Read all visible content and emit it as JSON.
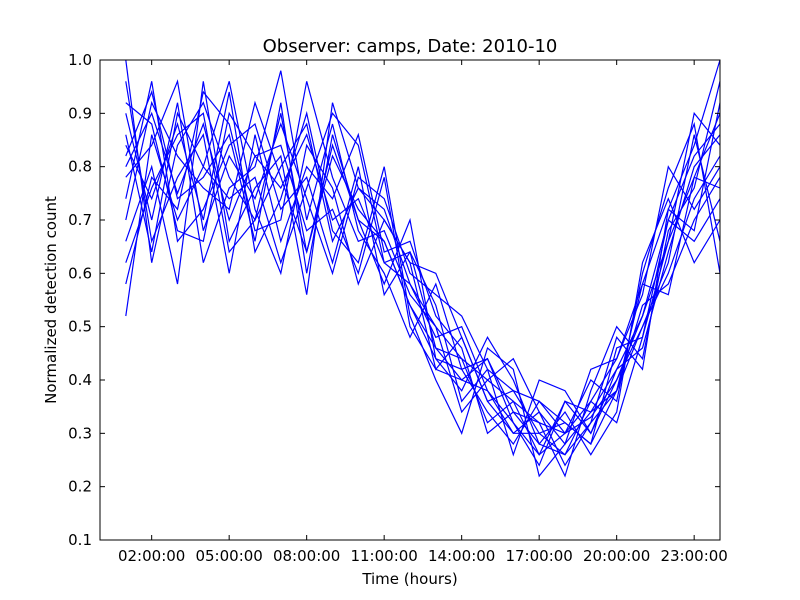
{
  "chart_data": {
    "type": "line",
    "title": "Observer: camps, Date: 2010-10",
    "xlabel": "Time (hours)",
    "ylabel": "Normalized detection count",
    "xlim": [
      0.0,
      24.0
    ],
    "ylim": [
      0.1,
      1.0
    ],
    "x_ticks": [
      {
        "value": 2,
        "label": "02:00:00"
      },
      {
        "value": 5,
        "label": "05:00:00"
      },
      {
        "value": 8,
        "label": "08:00:00"
      },
      {
        "value": 11,
        "label": "11:00:00"
      },
      {
        "value": 14,
        "label": "14:00:00"
      },
      {
        "value": 17,
        "label": "17:00:00"
      },
      {
        "value": 20,
        "label": "20:00:00"
      },
      {
        "value": 23,
        "label": "23:00:00"
      }
    ],
    "y_ticks": [
      {
        "value": 0.1,
        "label": "0.1"
      },
      {
        "value": 0.2,
        "label": "0.2"
      },
      {
        "value": 0.3,
        "label": "0.3"
      },
      {
        "value": 0.4,
        "label": "0.4"
      },
      {
        "value": 0.5,
        "label": "0.5"
      },
      {
        "value": 0.6,
        "label": "0.6"
      },
      {
        "value": 0.7,
        "label": "0.7"
      },
      {
        "value": 0.8,
        "label": "0.8"
      },
      {
        "value": 0.9,
        "label": "0.9"
      },
      {
        "value": 1.0,
        "label": "1.0"
      }
    ],
    "grid": false,
    "legend": "none",
    "line_color": "#0000ff",
    "x": [
      1,
      2,
      3,
      4,
      5,
      6,
      7,
      8,
      9,
      10,
      11,
      12,
      13,
      14,
      15,
      16,
      17,
      18,
      19,
      20,
      21,
      22,
      23,
      24
    ],
    "series": [
      {
        "values": [
          0.8,
          0.9,
          0.75,
          0.88,
          0.7,
          0.82,
          0.76,
          0.86,
          0.7,
          0.74,
          0.62,
          0.58,
          0.5,
          0.44,
          0.4,
          0.36,
          0.32,
          0.3,
          0.33,
          0.4,
          0.52,
          0.66,
          0.78,
          0.9
        ]
      },
      {
        "values": [
          1.0,
          0.62,
          0.84,
          0.92,
          0.78,
          0.7,
          0.9,
          0.64,
          0.82,
          0.72,
          0.66,
          0.54,
          0.46,
          0.4,
          0.44,
          0.34,
          0.28,
          0.26,
          0.36,
          0.44,
          0.58,
          0.72,
          0.84,
          1.0
        ]
      },
      {
        "values": [
          0.52,
          0.86,
          0.7,
          0.8,
          0.96,
          0.72,
          0.6,
          0.84,
          0.76,
          0.58,
          0.7,
          0.62,
          0.42,
          0.48,
          0.36,
          0.3,
          0.34,
          0.24,
          0.32,
          0.38,
          0.5,
          0.6,
          0.74,
          0.82
        ]
      },
      {
        "values": [
          0.74,
          0.96,
          0.66,
          0.72,
          0.84,
          0.88,
          0.72,
          0.78,
          0.62,
          0.8,
          0.56,
          0.64,
          0.54,
          0.36,
          0.42,
          0.38,
          0.3,
          0.32,
          0.28,
          0.46,
          0.48,
          0.7,
          0.66,
          0.74
        ]
      },
      {
        "values": [
          0.9,
          0.7,
          0.92,
          0.62,
          0.76,
          0.8,
          0.98,
          0.7,
          0.88,
          0.68,
          0.6,
          0.48,
          0.58,
          0.42,
          0.34,
          0.28,
          0.36,
          0.3,
          0.4,
          0.36,
          0.6,
          0.76,
          0.88,
          0.6
        ]
      },
      {
        "values": [
          0.66,
          0.8,
          0.58,
          0.96,
          0.66,
          0.76,
          0.82,
          0.56,
          0.92,
          0.76,
          0.72,
          0.58,
          0.48,
          0.5,
          0.38,
          0.32,
          0.26,
          0.36,
          0.3,
          0.42,
          0.46,
          0.64,
          0.8,
          0.86
        ]
      },
      {
        "values": [
          0.84,
          0.74,
          0.88,
          0.7,
          0.94,
          0.64,
          0.74,
          0.9,
          0.68,
          0.62,
          0.8,
          0.52,
          0.4,
          0.3,
          0.46,
          0.42,
          0.22,
          0.28,
          0.34,
          0.38,
          0.54,
          0.58,
          0.7,
          0.78
        ]
      },
      {
        "values": [
          0.96,
          0.66,
          0.78,
          0.86,
          0.6,
          0.86,
          0.66,
          0.8,
          0.74,
          0.86,
          0.64,
          0.66,
          0.52,
          0.46,
          0.3,
          0.34,
          0.32,
          0.22,
          0.38,
          0.5,
          0.44,
          0.68,
          0.76,
          0.96
        ]
      },
      {
        "values": [
          0.7,
          0.92,
          0.82,
          0.76,
          0.72,
          0.92,
          0.78,
          0.64,
          0.84,
          0.7,
          0.58,
          0.7,
          0.44,
          0.38,
          0.48,
          0.4,
          0.28,
          0.34,
          0.26,
          0.34,
          0.62,
          0.74,
          0.62,
          0.7
        ]
      },
      {
        "values": [
          0.78,
          0.84,
          0.96,
          0.68,
          0.82,
          0.74,
          0.88,
          0.74,
          0.6,
          0.78,
          0.74,
          0.6,
          0.56,
          0.52,
          0.42,
          0.26,
          0.4,
          0.38,
          0.3,
          0.4,
          0.5,
          0.62,
          0.86,
          0.66
        ]
      },
      {
        "values": [
          0.58,
          0.78,
          0.72,
          0.94,
          0.88,
          0.68,
          0.7,
          0.96,
          0.78,
          0.66,
          0.68,
          0.56,
          0.5,
          0.34,
          0.4,
          0.44,
          0.34,
          0.28,
          0.42,
          0.44,
          0.56,
          0.8,
          0.72,
          0.8
        ]
      },
      {
        "values": [
          0.86,
          0.64,
          0.9,
          0.8,
          0.74,
          0.78,
          0.62,
          0.76,
          0.9,
          0.84,
          0.62,
          0.64,
          0.46,
          0.44,
          0.32,
          0.36,
          0.26,
          0.3,
          0.36,
          0.32,
          0.48,
          0.66,
          0.9,
          0.84
        ]
      },
      {
        "values": [
          0.92,
          0.88,
          0.68,
          0.66,
          0.9,
          0.82,
          0.84,
          0.68,
          0.72,
          0.6,
          0.78,
          0.5,
          0.42,
          0.4,
          0.38,
          0.3,
          0.3,
          0.26,
          0.32,
          0.48,
          0.42,
          0.72,
          0.68,
          0.92
        ]
      },
      {
        "values": [
          0.62,
          0.76,
          0.86,
          0.9,
          0.64,
          0.7,
          0.8,
          0.88,
          0.66,
          0.76,
          0.7,
          0.62,
          0.6,
          0.48,
          0.36,
          0.38,
          0.36,
          0.32,
          0.28,
          0.38,
          0.58,
          0.56,
          0.78,
          0.76
        ]
      },
      {
        "values": [
          0.82,
          0.94,
          0.74,
          0.78,
          0.86,
          0.66,
          0.92,
          0.6,
          0.86,
          0.7,
          0.66,
          0.54,
          0.44,
          0.42,
          0.44,
          0.32,
          0.24,
          0.36,
          0.34,
          0.42,
          0.52,
          0.7,
          0.82,
          0.88
        ]
      }
    ]
  }
}
